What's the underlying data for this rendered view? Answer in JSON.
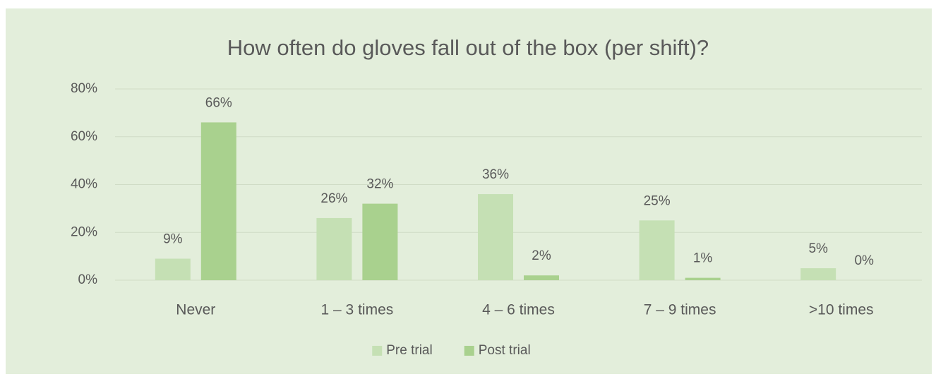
{
  "chart_data": {
    "type": "bar",
    "title": "How often do gloves fall out of the box (per shift)?",
    "categories": [
      "Never",
      "1 – 3 times",
      "4 – 6 times",
      "7 – 9 times",
      ">10 times"
    ],
    "series": [
      {
        "name": "Pre trial",
        "color": "#c5e0b4",
        "values": [
          9,
          26,
          36,
          25,
          5
        ],
        "value_labels": [
          "9%",
          "26%",
          "36%",
          "25%",
          "5%"
        ]
      },
      {
        "name": "Post trial",
        "color": "#a9d18e",
        "values": [
          66,
          32,
          2,
          1,
          0
        ],
        "value_labels": [
          "66%",
          "32%",
          "2%",
          "1%",
          "0%"
        ]
      }
    ],
    "ylim": [
      0,
      80
    ],
    "yticks": [
      {
        "value": 0,
        "label": "0%"
      },
      {
        "value": 20,
        "label": "20%"
      },
      {
        "value": 40,
        "label": "40%"
      },
      {
        "value": 60,
        "label": "60%"
      },
      {
        "value": 80,
        "label": "80%"
      }
    ],
    "grid": true,
    "legend": "bottom"
  }
}
